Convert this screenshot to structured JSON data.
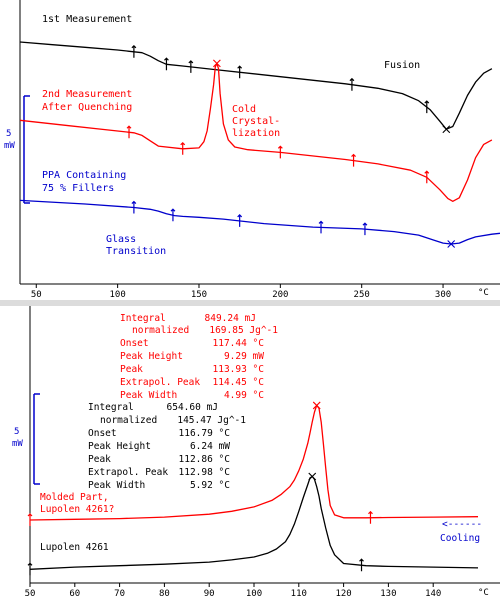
{
  "colors": {
    "black": "#000000",
    "red": "#ff0000",
    "blue": "#0000cc"
  },
  "chart_data": [
    {
      "type": "line",
      "title": "",
      "xlabel": "",
      "ylabel": "",
      "x_unit": "°C",
      "xlim": [
        40,
        335
      ],
      "x_ticks": [
        50,
        100,
        150,
        200,
        250,
        300
      ],
      "grid": false,
      "scale_bar": {
        "value": "5",
        "unit": "mW"
      },
      "annotations": {
        "black_title": "1st Measurement",
        "fusion": "Fusion",
        "red_title_1": "2nd Measurement",
        "red_title_2": "After Quenching",
        "cold_1": "Cold",
        "cold_2": "Crystal-",
        "cold_3": "lization",
        "blue_title_1": "PPA Containing",
        "blue_title_2": "75 % Fillers",
        "glass_1": "Glass",
        "glass_2": "Transition"
      },
      "series": [
        {
          "color": "#000000",
          "x": [
            40,
            60,
            80,
            100,
            115,
            120,
            125,
            130,
            140,
            160,
            200,
            240,
            260,
            275,
            285,
            292,
            298,
            302,
            306,
            310,
            315,
            320,
            325,
            330
          ],
          "y": [
            0,
            -0.3,
            -0.6,
            -0.9,
            -1.2,
            -1.6,
            -2.1,
            -2.5,
            -2.7,
            -3.1,
            -3.9,
            -4.7,
            -5.2,
            -5.8,
            -6.6,
            -7.6,
            -8.9,
            -9.8,
            -9.5,
            -8.0,
            -6.0,
            -4.5,
            -3.5,
            -3.0
          ]
        },
        {
          "color": "#ff0000",
          "x": [
            40,
            70,
            100,
            110,
            115,
            120,
            125,
            140,
            150,
            153,
            155,
            157,
            159,
            160,
            161,
            162,
            163,
            165,
            168,
            172,
            180,
            200,
            240,
            260,
            280,
            290,
            298,
            303,
            306,
            310,
            315,
            320,
            325,
            330
          ],
          "y": [
            -8.8,
            -9.4,
            -10.0,
            -10.2,
            -10.5,
            -11.1,
            -11.7,
            -12.0,
            -11.9,
            -11.2,
            -10.0,
            -7.5,
            -4.8,
            -2.8,
            -2.4,
            -3.0,
            -5.8,
            -9.2,
            -11.0,
            -11.8,
            -12.1,
            -12.4,
            -13.2,
            -13.7,
            -14.4,
            -15.2,
            -16.6,
            -17.6,
            -17.9,
            -17.5,
            -15.5,
            -13.0,
            -11.5,
            -11.0
          ]
        },
        {
          "color": "#0000cc",
          "x": [
            40,
            80,
            110,
            120,
            125,
            130,
            135,
            140,
            150,
            165,
            190,
            220,
            250,
            270,
            285,
            295,
            300,
            305,
            310,
            315,
            320,
            330,
            335
          ],
          "y": [
            -17.8,
            -18.2,
            -18.6,
            -18.8,
            -19.0,
            -19.3,
            -19.5,
            -19.6,
            -19.7,
            -19.9,
            -20.4,
            -20.8,
            -21.0,
            -21.3,
            -21.7,
            -22.3,
            -22.6,
            -22.7,
            -22.6,
            -22.2,
            -21.9,
            -21.6,
            -21.5
          ]
        }
      ]
    },
    {
      "type": "line",
      "title": "",
      "xlabel": "",
      "ylabel": "",
      "x_unit": "°C",
      "xlim": [
        50,
        150
      ],
      "x_ticks": [
        50,
        60,
        70,
        80,
        90,
        100,
        110,
        120,
        130,
        140
      ],
      "grid": false,
      "scale_bar": {
        "value": "5",
        "unit": "mW"
      },
      "annotations": {
        "molded_1": "Molded Part,",
        "molded_2": "Lupolen 4261?",
        "lupolen": "Lupolen 4261",
        "cooling": "Cooling",
        "cooling_arrow": "<------"
      },
      "result_tables": [
        {
          "color": "#ff0000",
          "rows": [
            {
              "label": "Integral",
              "value": "849.24 mJ"
            },
            {
              "label": "normalized",
              "value": "169.85 Jg^-1"
            },
            {
              "label": "Onset",
              "value": "117.44 °C"
            },
            {
              "label": "Peak Height",
              "value": "9.29 mW"
            },
            {
              "label": "Peak",
              "value": "113.93 °C"
            },
            {
              "label": "Extrapol. Peak",
              "value": "114.45 °C"
            },
            {
              "label": "Peak Width",
              "value": "4.99 °C"
            }
          ]
        },
        {
          "color": "#000000",
          "rows": [
            {
              "label": "Integral",
              "value": "654.60 mJ"
            },
            {
              "label": "normalized",
              "value": "145.47 Jg^-1"
            },
            {
              "label": "Onset",
              "value": "116.79 °C"
            },
            {
              "label": "Peak Height",
              "value": "6.24 mW"
            },
            {
              "label": "Peak",
              "value": "112.86 °C"
            },
            {
              "label": "Extrapol. Peak",
              "value": "112.98 °C"
            },
            {
              "label": "Peak Width",
              "value": "5.92 °C"
            }
          ]
        }
      ],
      "series": [
        {
          "color": "#ff0000",
          "x": [
            50,
            60,
            70,
            80,
            90,
            95,
            100,
            104,
            106,
            108,
            109,
            110,
            111,
            112,
            112.5,
            113,
            113.5,
            114,
            114.5,
            115,
            115.5,
            116,
            116.5,
            117,
            118,
            120,
            125,
            130,
            140,
            150
          ],
          "y": [
            0,
            0.1,
            0.2,
            0.4,
            0.8,
            1.2,
            1.8,
            2.7,
            3.5,
            4.6,
            5.5,
            6.8,
            8.4,
            10.6,
            12.0,
            13.5,
            14.9,
            15.8,
            15.4,
            13.5,
            10.5,
            7.2,
            4.2,
            2.0,
            0.7,
            0.3,
            0.3,
            0.35,
            0.4,
            0.45
          ]
        },
        {
          "color": "#000000",
          "x": [
            50,
            60,
            70,
            80,
            90,
            95,
            100,
            103,
            105,
            107,
            108,
            109,
            110,
            111,
            112,
            112.5,
            113,
            113.5,
            114,
            114.5,
            115,
            116,
            117,
            118,
            120,
            125,
            130,
            140,
            150
          ],
          "y": [
            -6.8,
            -6.5,
            -6.3,
            -6.1,
            -5.8,
            -5.5,
            -5.1,
            -4.6,
            -4.0,
            -3.0,
            -2.0,
            -0.6,
            1.2,
            3.1,
            4.9,
            5.8,
            6.0,
            5.6,
            4.6,
            3.3,
            1.6,
            -1.1,
            -3.5,
            -4.8,
            -6.0,
            -6.3,
            -6.4,
            -6.5,
            -6.6
          ]
        }
      ]
    }
  ]
}
